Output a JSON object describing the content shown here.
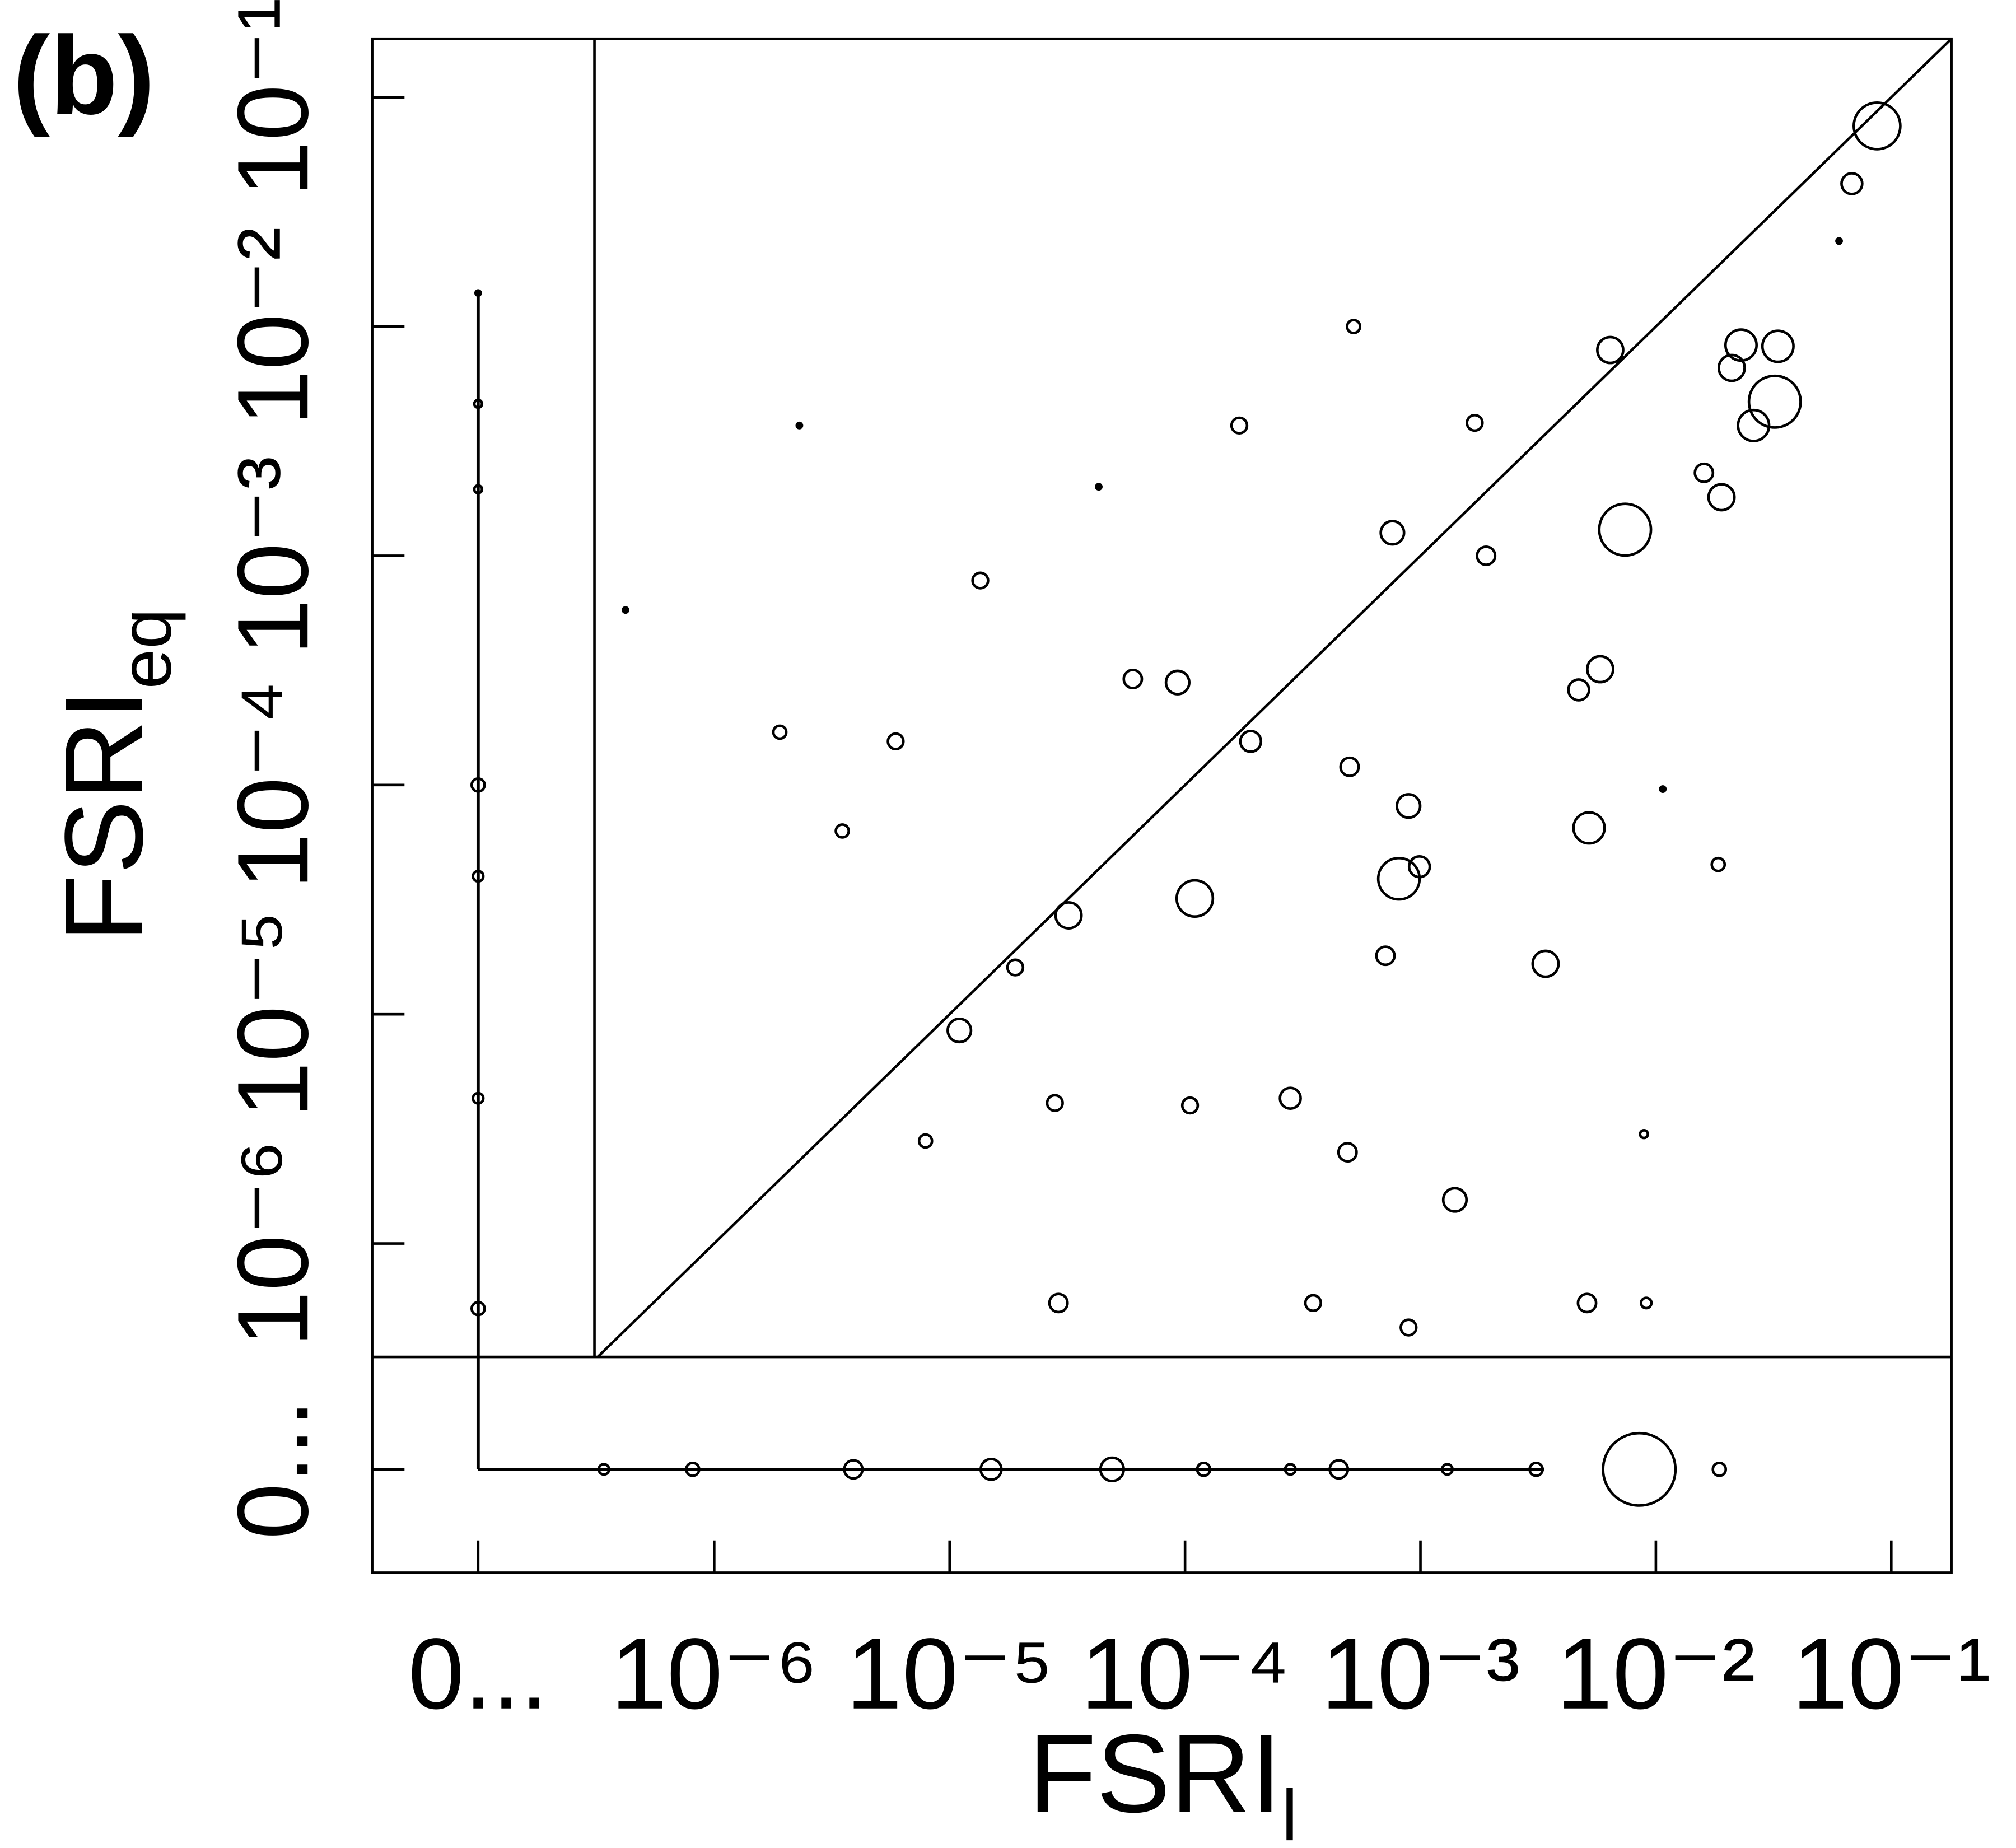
{
  "chart_data": {
    "type": "scatter",
    "panel_label": "(b)",
    "xlabel": "FSRI",
    "xlabel_sub": "l",
    "ylabel": "FSRI",
    "ylabel_sub": "eq",
    "log_scale": true,
    "diagonal": true,
    "color": "#000000",
    "xlim": [
      3.1e-07,
      0.18
    ],
    "ylim": [
      3.2e-07,
      0.18
    ],
    "xticks": [
      {
        "value": 0,
        "label": "0..."
      },
      {
        "value": 1e-06,
        "label": "10⁻⁶"
      },
      {
        "value": 1e-05,
        "label": "10⁻⁵"
      },
      {
        "value": 0.0001,
        "label": "10⁻⁴"
      },
      {
        "value": 0.001,
        "label": "10⁻³"
      },
      {
        "value": 0.01,
        "label": "10⁻²"
      },
      {
        "value": 0.1,
        "label": "10⁻¹"
      }
    ],
    "yticks": [
      {
        "value": 0,
        "label": "0..."
      },
      {
        "value": 1e-06,
        "label": "10⁻⁶"
      },
      {
        "value": 1e-05,
        "label": "10⁻⁵"
      },
      {
        "value": 0.0001,
        "label": "10⁻⁴"
      },
      {
        "value": 0.001,
        "label": "10⁻³"
      },
      {
        "value": 0.01,
        "label": "10⁻²"
      },
      {
        "value": 0.1,
        "label": "10⁻¹"
      }
    ],
    "series": [
      {
        "x": [
          0.087,
          0.068,
          0.032,
          0.023,
          0.033,
          0.021,
          0.026,
          0.0064,
          0.0074,
          0.019,
          0.016,
          0.0052,
          0.0034,
          0.00081,
          0.00099,
          0.00089,
          0.00011,
          3.2e-05,
          1.1e-05,
          9.3e-05,
          6e-05,
          0.00019,
          0.00052,
          0.00017,
          0.0017,
          0.00076,
          0.0014,
          0.0051,
          0.00089,
          2.9e-05,
          0.00035,
          0.00028,
          0.00049,
          0.00071,
          0.0047,
          0.0058,
          5.9e-06,
          1.35e-05,
          1.9e-06,
          3.5e-06,
          1.9e-05,
          2.8e-05,
          7.9e-06,
          0.000105,
          0.0005,
          0.0019,
          0.0184,
          0.0091,
          0.06,
          2.3e-06,
          0.0089,
          0.0107,
          4.2e-07,
          4.3e-05,
          0.0085,
          4.9e-05,
          1.5e-05,
          3.9e-06,
          0.00045,
          0.0186,
          0.0031,
          0.00012,
          8.1e-07,
          3.4e-07,
          0.0013,
          0.00028,
          0,
          0,
          0,
          0,
          0,
          0,
          0
        ],
        "y": [
          0.075,
          0.042,
          0.0047,
          0.0083,
          0.0082,
          0.0066,
          0.0037,
          0.0079,
          0.0013,
          0.0018,
          0.0023,
          6.5e-05,
          1.66e-05,
          3.9e-05,
          4.4e-05,
          8.1e-05,
          3.2e-05,
          2.7e-05,
          8.5e-06,
          0.00028,
          0.00029,
          0.000155,
          0.01,
          0.0037,
          0.0038,
          0.00126,
          1.55e-06,
          5.5e-07,
          4.3e-07,
          5.5e-07,
          5.5e-07,
          4.3e-06,
          2.5e-06,
          1.8e-05,
          0.00026,
          0.00032,
          0.000155,
          0.00078,
          0.00017,
          6.3e-05,
          1.6e-05,
          4.1e-06,
          2.8e-06,
          4e-06,
          0.00012,
          0.001,
          4.5e-05,
          5.5e-07,
          0.0236,
          0.0037,
          3e-06,
          9.6e-05,
          0.00058,
          0.002,
          0,
          0,
          0,
          0,
          0,
          0,
          0,
          0,
          0,
          0,
          0,
          0,
          0.0001,
          5.2e-07,
          4.3e-06,
          4e-05,
          0.00195,
          0.0046,
          0.014
        ],
        "size": [
          18,
          8,
          20,
          12,
          12,
          10,
          12,
          10,
          20,
          10,
          7,
          12,
          10,
          16,
          8,
          9,
          14,
          10,
          9,
          9,
          7,
          8,
          5,
          6,
          6,
          9,
          9,
          7,
          6,
          7,
          6,
          8,
          7,
          7,
          8,
          10,
          6,
          6,
          5,
          5,
          6,
          6,
          5,
          6,
          7,
          7,
          5,
          4,
          2,
          2,
          3,
          2,
          2,
          2,
          28,
          9,
          8,
          7,
          7,
          5,
          5,
          5,
          5,
          4,
          4,
          4,
          5,
          5,
          4,
          4,
          3,
          3,
          2
        ]
      }
    ]
  }
}
